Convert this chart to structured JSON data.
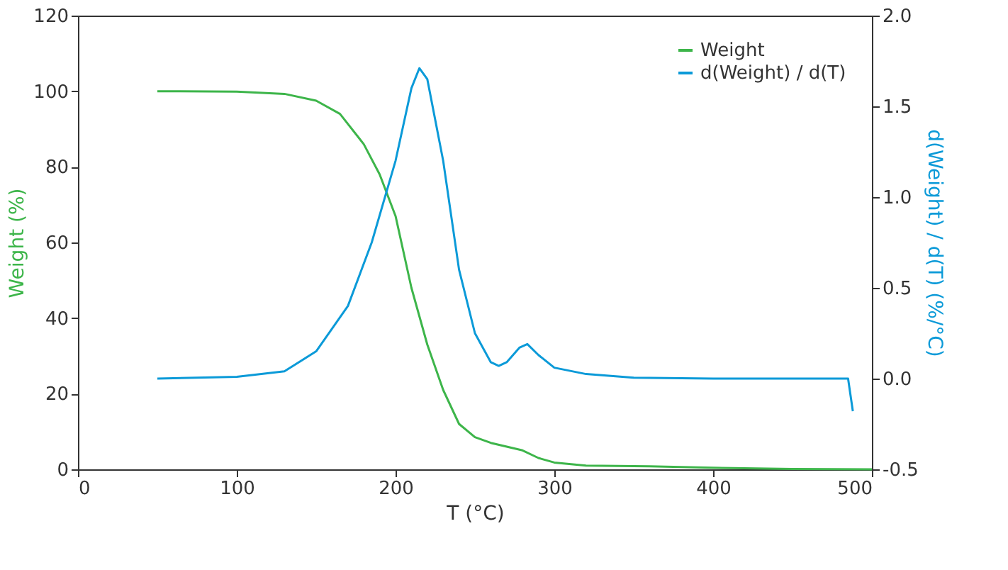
{
  "chart_data": {
    "type": "line",
    "xlabel": "T (°C)",
    "ylabel": "Weight (%)",
    "y2label": "d(Weight) / d(T) (%/°C)",
    "xlim": [
      0,
      500
    ],
    "xticks": [
      0,
      100,
      200,
      300,
      400,
      500
    ],
    "ylim": [
      0,
      120
    ],
    "yticks": [
      0,
      20,
      40,
      60,
      80,
      100,
      120
    ],
    "y2lim": [
      -0.5,
      2.0
    ],
    "y2ticks": [
      {
        "value": -0.5,
        "label": "-0.5"
      },
      {
        "value": 0,
        "label": "0.0"
      },
      {
        "value": 0.5,
        "label": "0.5"
      },
      {
        "value": 1,
        "label": "1.0"
      },
      {
        "value": 1.5,
        "label": "1.5"
      },
      {
        "value": 2,
        "label": "2.0"
      }
    ],
    "legend": "top right",
    "grid": false,
    "series": [
      {
        "name": "Weight",
        "color": "#3db54a",
        "x": [
          50,
          100,
          130,
          150,
          165,
          180,
          190,
          200,
          210,
          220,
          230,
          240,
          250,
          260,
          270,
          280,
          290,
          300,
          320,
          360,
          400,
          450,
          500
        ],
        "values": [
          100,
          99.9,
          99.3,
          97.5,
          94,
          86,
          78,
          67,
          48,
          33,
          21,
          12,
          8.5,
          7,
          6,
          5,
          3,
          1.8,
          1.0,
          0.8,
          0.4,
          0.1,
          0
        ]
      },
      {
        "name": "d(Weight) / d(T)",
        "color": "#0b9ad8",
        "axis": "y2",
        "x": [
          50,
          100,
          130,
          150,
          170,
          185,
          200,
          210,
          215,
          220,
          230,
          240,
          250,
          260,
          265,
          270,
          278,
          283,
          290,
          300,
          320,
          350,
          400,
          485,
          488
        ],
        "values": [
          0,
          0.01,
          0.04,
          0.15,
          0.4,
          0.75,
          1.2,
          1.6,
          1.71,
          1.65,
          1.2,
          0.6,
          0.25,
          0.09,
          0.07,
          0.09,
          0.17,
          0.19,
          0.13,
          0.06,
          0.025,
          0.005,
          0,
          0,
          -0.18
        ]
      }
    ]
  }
}
